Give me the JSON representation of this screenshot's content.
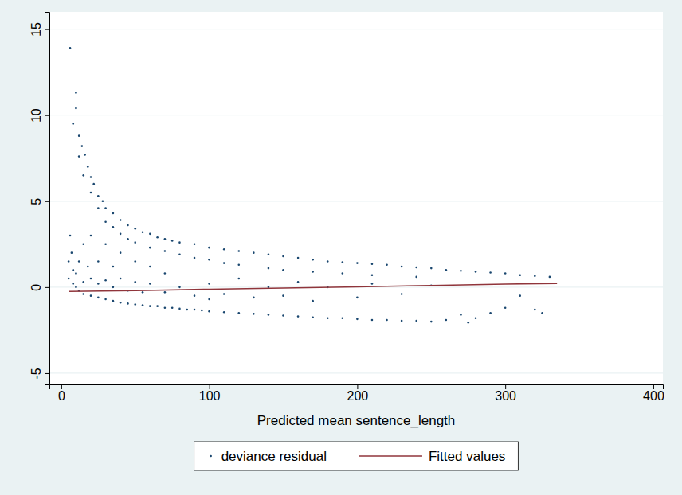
{
  "chart_data": {
    "type": "scatter",
    "x_label": "Predicted mean sentence_length",
    "xlim": [
      -8,
      406.5
    ],
    "ylim": [
      -5.65,
      16
    ],
    "xticks": [
      0,
      100,
      200,
      300,
      400
    ],
    "yticks": [
      -5,
      0,
      5,
      10,
      15
    ],
    "grid": "y",
    "legend": "bottom",
    "series": [
      {
        "name": "deviance residual",
        "type": "scatter",
        "marker": "point",
        "color": "#1a476f",
        "x": [
          6,
          8,
          10,
          10,
          12,
          12,
          14,
          15,
          16,
          18,
          20,
          20,
          22,
          25,
          25,
          28,
          30,
          30,
          35,
          35,
          40,
          40,
          45,
          45,
          50,
          50,
          55,
          60,
          60,
          65,
          70,
          70,
          75,
          80,
          80,
          90,
          90,
          100,
          100,
          110,
          110,
          120,
          120,
          130,
          140,
          140,
          150,
          150,
          160,
          170,
          170,
          180,
          190,
          190,
          200,
          210,
          210,
          220,
          230,
          240,
          240,
          250,
          260,
          270,
          280,
          290,
          300,
          310,
          320,
          330,
          5,
          5,
          6,
          7,
          8,
          8,
          10,
          10,
          12,
          12,
          15,
          15,
          15,
          18,
          20,
          20,
          20,
          25,
          25,
          25,
          30,
          30,
          30,
          35,
          35,
          35,
          40,
          40,
          40,
          45,
          45,
          50,
          50,
          50,
          55,
          55,
          60,
          60,
          60,
          65,
          70,
          70,
          70,
          75,
          80,
          80,
          85,
          90,
          90,
          95,
          100,
          100,
          100,
          110,
          110,
          120,
          120,
          130,
          130,
          140,
          140,
          150,
          150,
          160,
          160,
          170,
          170,
          180,
          180,
          190,
          200,
          200,
          210,
          210,
          220,
          230,
          230,
          240,
          250,
          250,
          260,
          270,
          275,
          280,
          290,
          300,
          310,
          320,
          325
        ],
        "values": [
          13.9,
          9.5,
          11.3,
          10.4,
          8.8,
          7.6,
          8.2,
          6.5,
          7.7,
          7.0,
          6.4,
          5.5,
          6.0,
          5.3,
          4.6,
          5.0,
          4.6,
          3.8,
          4.3,
          3.5,
          3.9,
          3.1,
          3.6,
          2.8,
          3.4,
          2.6,
          3.2,
          3.1,
          2.3,
          2.9,
          2.8,
          2.1,
          2.7,
          2.6,
          1.9,
          2.5,
          1.7,
          2.3,
          1.6,
          2.2,
          1.4,
          2.1,
          1.3,
          2.0,
          1.9,
          1.1,
          1.8,
          1.0,
          1.7,
          1.6,
          0.9,
          1.5,
          1.45,
          0.8,
          1.4,
          1.35,
          0.7,
          1.3,
          1.2,
          1.15,
          0.6,
          1.1,
          1.0,
          0.95,
          0.9,
          0.85,
          0.8,
          0.7,
          0.65,
          0.6,
          1.5,
          0.5,
          3,
          2,
          1,
          0.2,
          0,
          0.8,
          1.5,
          -0.2,
          2.5,
          0.3,
          -0.4,
          1.2,
          -0.5,
          0.5,
          3,
          -0.6,
          0.2,
          1.5,
          -0.7,
          0.4,
          2.5,
          -0.8,
          0,
          1.2,
          -0.9,
          0.5,
          2,
          -0.95,
          -0.2,
          -1.0,
          0.3,
          1.5,
          -1.05,
          -0.3,
          -1.1,
          0.2,
          1.2,
          -1.1,
          -1.2,
          -0.3,
          0.8,
          -1.2,
          -1.25,
          0,
          -1.3,
          -1.3,
          -0.5,
          -1.35,
          -1.4,
          0.2,
          -0.7,
          -1.45,
          -0.4,
          -1.5,
          0.5,
          -1.55,
          -0.6,
          -1.6,
          0,
          -1.65,
          -0.5,
          -1.7,
          0.3,
          -1.75,
          -0.8,
          -1.8,
          0,
          -1.8,
          -1.85,
          -0.6,
          -1.9,
          0.2,
          -1.9,
          -1.95,
          -0.4,
          -1.95,
          -2.0,
          0.1,
          -1.9,
          -1.6,
          -2.05,
          -1.8,
          -1.5,
          -1.2,
          -0.5,
          -1.3,
          -1.5
        ]
      },
      {
        "name": "Fitted values",
        "type": "line",
        "line_style": "solid",
        "color": "#90353b",
        "x": [
          5,
          50,
          100,
          150,
          200,
          250,
          300,
          335
        ],
        "values": [
          -0.25,
          -0.2,
          -0.12,
          -0.05,
          0.02,
          0.1,
          0.18,
          0.22
        ]
      }
    ]
  }
}
